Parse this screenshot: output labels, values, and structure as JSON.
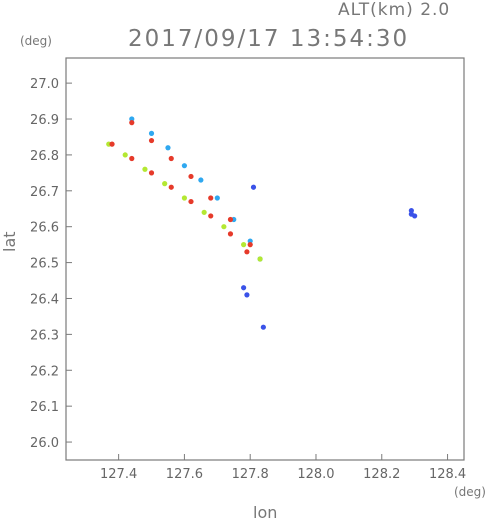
{
  "header": {
    "altitude_label": "ALT(km)  2.0",
    "timestamp": "2017/09/17 13:54:30"
  },
  "chart_data": {
    "type": "scatter",
    "title": "2017/09/17 13:54:30",
    "xlabel": "lon",
    "ylabel": "lat",
    "xunit": "(deg)",
    "yunit": "(deg)",
    "xlim": [
      127.24,
      128.45
    ],
    "ylim": [
      25.95,
      27.07
    ],
    "xticks": [
      "127.4",
      "127.6",
      "127.8",
      "128.0",
      "128.2",
      "128.4"
    ],
    "yticks": [
      "26.0",
      "26.1",
      "26.2",
      "26.3",
      "26.4",
      "26.5",
      "26.6",
      "26.7",
      "26.8",
      "26.9",
      "27.0"
    ],
    "grid": false,
    "colors": {
      "blue": "#3a52e8",
      "light_blue": "#2fa8f0",
      "cyan": "#36d8e6",
      "green": "#38d068",
      "yellow_green": "#b4e832",
      "orange": "#f09030",
      "red": "#e63a2a"
    },
    "series": [
      {
        "color": "#2fa8f0",
        "x": [
          127.44,
          127.5,
          127.55,
          127.6,
          127.65,
          127.7,
          127.75,
          127.8,
          127.83
        ],
        "y": [
          26.9,
          26.86,
          26.82,
          26.77,
          26.73,
          26.68,
          26.62,
          26.56,
          26.51
        ]
      },
      {
        "color": "#b4e832",
        "x": [
          127.37,
          127.42,
          127.48,
          127.54,
          127.6,
          127.66,
          127.72,
          127.78,
          127.83
        ],
        "y": [
          26.83,
          26.8,
          26.76,
          26.72,
          26.68,
          26.64,
          26.6,
          26.55,
          26.51
        ]
      },
      {
        "color": "#e63a2a",
        "x": [
          127.44,
          127.5,
          127.56,
          127.62,
          127.68,
          127.74,
          127.8
        ],
        "y": [
          26.89,
          26.84,
          26.79,
          26.74,
          26.68,
          26.62,
          26.55
        ]
      },
      {
        "color": "#e63a2a",
        "x": [
          127.38,
          127.44,
          127.5,
          127.56,
          127.62,
          127.68,
          127.74,
          127.79
        ],
        "y": [
          26.83,
          26.79,
          26.75,
          26.71,
          26.67,
          26.63,
          26.58,
          26.53
        ]
      },
      {
        "color": "#3a52e8",
        "x": [
          127.81,
          127.78,
          127.79,
          127.84,
          128.29,
          128.29,
          128.3
        ],
        "y": [
          26.71,
          26.43,
          26.41,
          26.32,
          26.645,
          26.635,
          26.63
        ]
      }
    ]
  }
}
